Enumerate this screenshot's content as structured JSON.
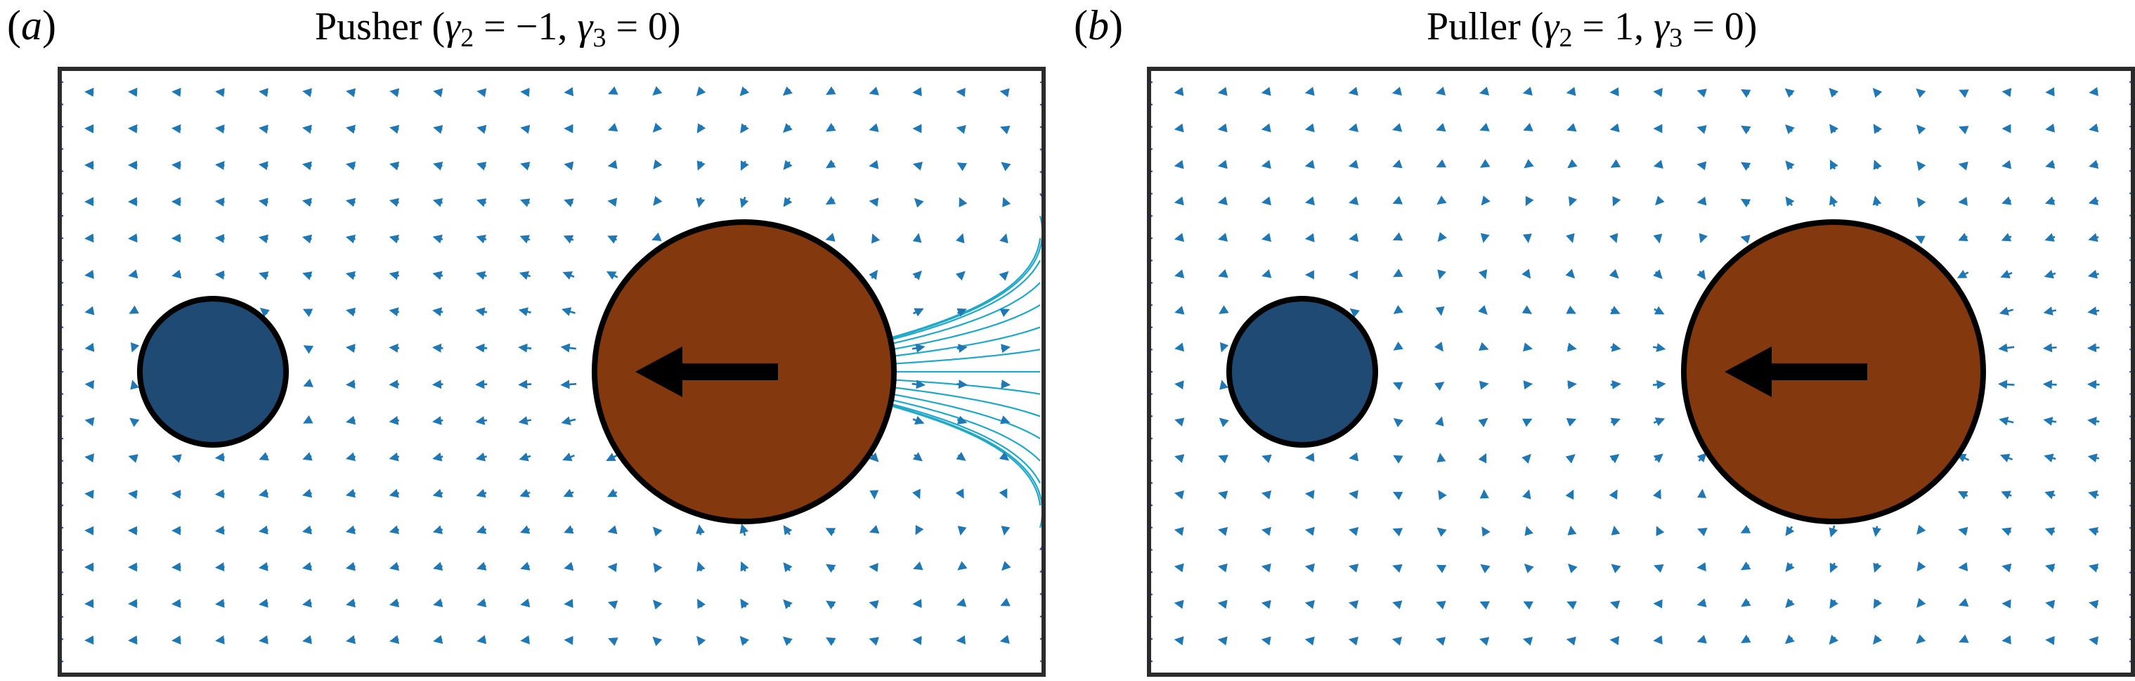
{
  "panels": [
    {
      "id": "a",
      "tag": "a",
      "title_word": "Pusher",
      "gamma2_value": "−1",
      "gamma3_value": "0",
      "kind": "pusher"
    },
    {
      "id": "b",
      "tag": "b",
      "title_word": "Puller",
      "gamma2_value": "1",
      "gamma3_value": "0",
      "kind": "puller"
    }
  ],
  "colors": {
    "passive_particle": "#1f4a73",
    "swimmer": "#84380d",
    "outline": "#000000",
    "arrow": "#1f77b4",
    "frame": "#2b2b2b"
  }
}
